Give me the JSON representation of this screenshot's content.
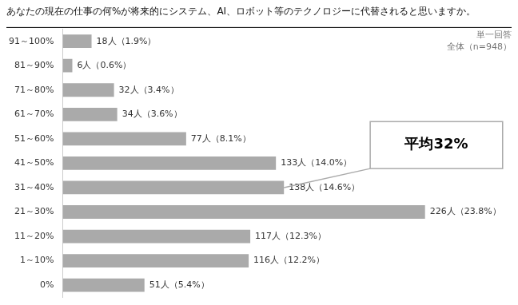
{
  "chart_data": {
    "type": "bar",
    "orientation": "horizontal",
    "title": "あなたの現在の仕事の何%が将来的にシステム、AI、ロボット等のテクノロジーに代替されると思いますか。",
    "categories": [
      "91～100%",
      "81～90%",
      "71～80%",
      "61～70%",
      "51～60%",
      "41～50%",
      "31～40%",
      "21～30%",
      "11～20%",
      "1～10%",
      "0%"
    ],
    "values": [
      18,
      6,
      32,
      34,
      77,
      133,
      138,
      226,
      117,
      116,
      51
    ],
    "value_labels": [
      "18人（1.9%）",
      "6人（0.6%）",
      "32人（3.4%）",
      "34人（3.6%）",
      "77人（8.1%）",
      "133人（14.0%）",
      "138人（14.6%）",
      "226人（23.8%）",
      "117人（12.3%）",
      "116人（12.2%）",
      "51人（5.4%）"
    ],
    "data_labels": true,
    "color": "#aaaaaa",
    "xlim": [
      0,
      280
    ],
    "tick_labels": "y",
    "grid": false,
    "legend": false,
    "annotations": [
      {
        "text": "単一回答"
      },
      {
        "text": "全体（n=948）"
      },
      {
        "text": "平均32%",
        "category": "31～40%"
      }
    ]
  }
}
